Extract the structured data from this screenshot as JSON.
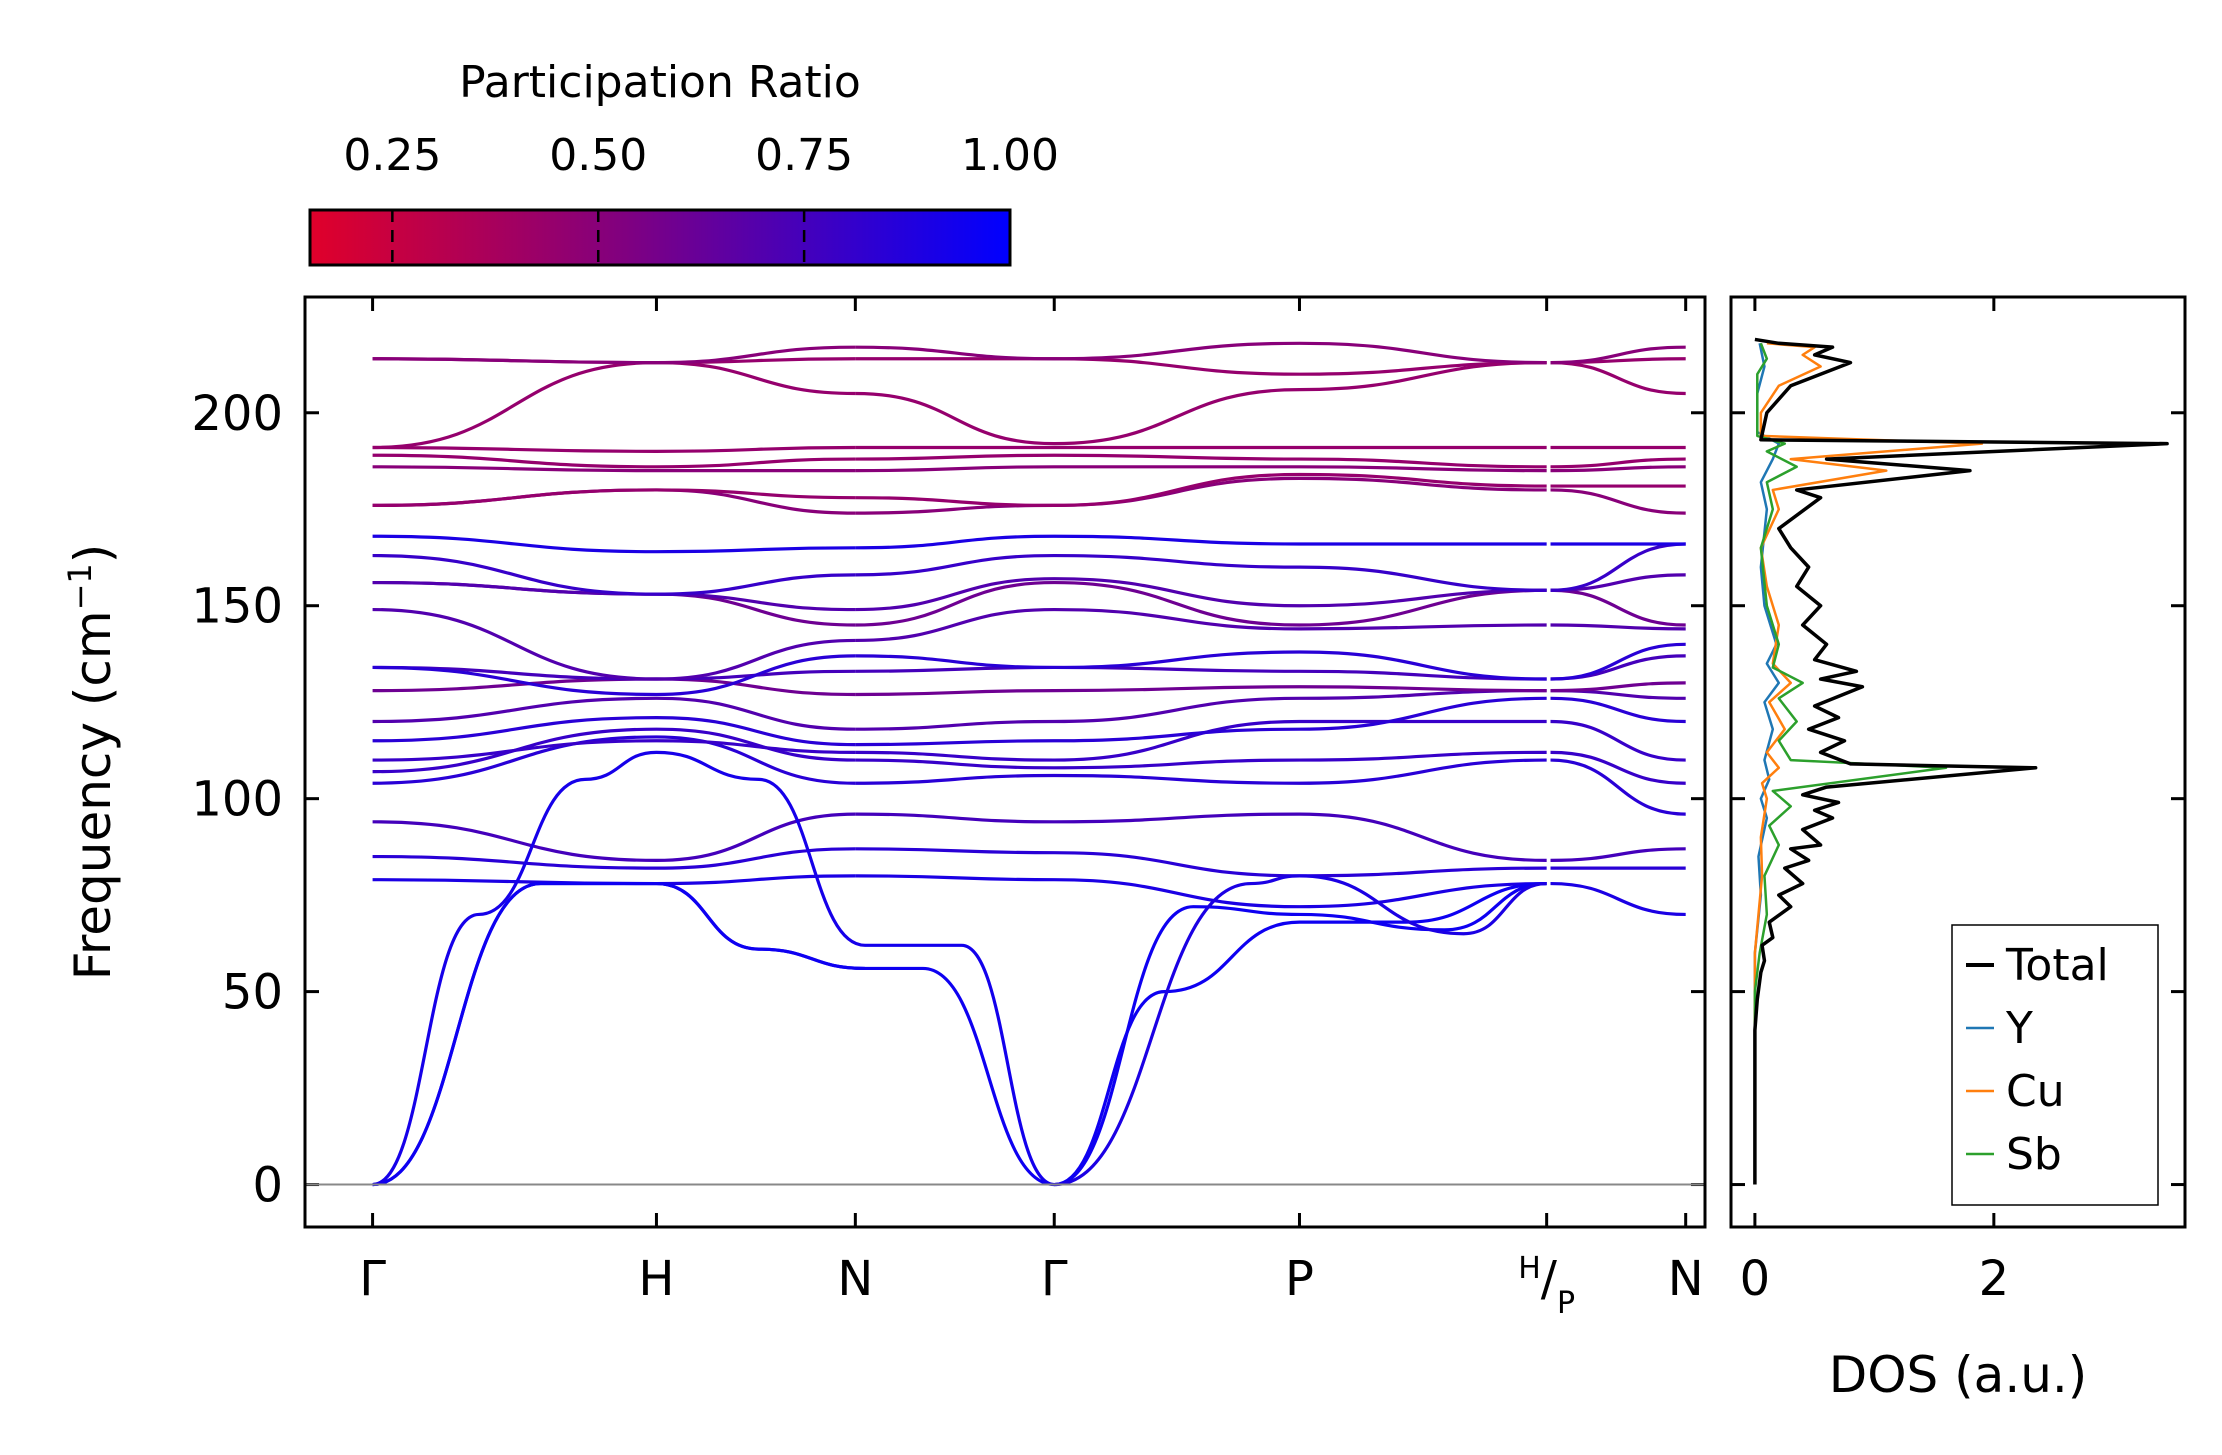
{
  "chart_data": [
    {
      "type": "line",
      "subtype": "phonon-band-structure",
      "title": "",
      "ylabel": "Frequency (cm⁻¹)",
      "ylabel_base": "Frequency (cm",
      "ylabel_sup": "−1",
      "ylabel_close": ")",
      "ylim": [
        -11,
        230
      ],
      "yticks": [
        0,
        50,
        100,
        150,
        200
      ],
      "xlim": [
        0,
        7.25
      ],
      "segments": [
        [
          0.35,
          2.9
        ],
        [
          2.9,
          5.45
        ]
      ],
      "kpoints": [
        {
          "label": "Γ",
          "x": 0.35
        },
        {
          "label": "H",
          "x": 1.82
        },
        {
          "label": "N",
          "x": 2.85
        },
        {
          "label": "Γ",
          "x": 3.88
        },
        {
          "label": "P",
          "x": 5.15
        },
        {
          "label": "H/P",
          "label_main": "H",
          "label_sep": "/",
          "label_sub": "P",
          "x": 6.43
        },
        {
          "label": "N",
          "x": 7.15
        }
      ],
      "zero_line": 0,
      "colorbar": {
        "label": "Participation Ratio",
        "ticks": [
          "0.25",
          "0.50",
          "0.75",
          "1.00"
        ],
        "tick_values": [
          0.25,
          0.5,
          0.75,
          1.0
        ],
        "range": [
          0.15,
          1.0
        ],
        "color_low": "#e0002a",
        "color_mid": "#800080",
        "color_high": "#0000ff"
      },
      "acoustic_branches": [
        {
          "path": [
            [
              0.35,
              0
            ],
            [
              1.22,
              78
            ],
            [
              1.82,
              78
            ],
            [
              2.35,
              61
            ],
            [
              2.9,
              56
            ]
          ],
          "pr": 0.95
        },
        {
          "path": [
            [
              0.35,
              0
            ],
            [
              1.22,
              78
            ],
            [
              1.82,
              78
            ],
            [
              2.35,
              61
            ],
            [
              2.9,
              56
            ]
          ],
          "pr": 0.95
        },
        {
          "path": [
            [
              0.35,
              0
            ],
            [
              0.9,
              70
            ],
            [
              1.45,
              105
            ],
            [
              1.82,
              112
            ],
            [
              2.35,
              105
            ],
            [
              2.9,
              62
            ]
          ],
          "pr": 0.92
        },
        {
          "path": [
            [
              3.88,
              0
            ],
            [
              3.2,
              56
            ],
            [
              2.9,
              56
            ]
          ],
          "pr": 0.95
        },
        {
          "path": [
            [
              3.88,
              0
            ],
            [
              3.4,
              62
            ],
            [
              2.9,
              62
            ]
          ],
          "pr": 0.93
        },
        {
          "path": [
            [
              3.88,
              0
            ],
            [
              4.45,
              50
            ],
            [
              5.15,
              68
            ],
            [
              5.7,
              68
            ],
            [
              6.43,
              78
            ]
          ],
          "pr": 0.95
        },
        {
          "path": [
            [
              3.88,
              0
            ],
            [
              4.6,
              72
            ],
            [
              5.15,
              70
            ],
            [
              5.9,
              66
            ],
            [
              6.43,
              78
            ]
          ],
          "pr": 0.95
        },
        {
          "path": [
            [
              3.88,
              0
            ],
            [
              4.9,
              78
            ],
            [
              5.15,
              80
            ],
            [
              6.0,
              65
            ],
            [
              6.43,
              78
            ]
          ],
          "pr": 0.9
        }
      ],
      "optical_branches": [
        {
          "at_gamma": 79,
          "at_H": 78,
          "at_N": 80,
          "at_gamma2": 79,
          "at_P": 72,
          "at_HP": 78,
          "at_N2": 70,
          "pr": 0.9
        },
        {
          "at_gamma": 85,
          "at_H": 82,
          "at_N": 87,
          "at_gamma2": 86,
          "at_P": 80,
          "at_HP": 82,
          "at_N2": 82,
          "pr": 0.85
        },
        {
          "at_gamma": 94,
          "at_H": 84,
          "at_N": 96,
          "at_gamma2": 94,
          "at_P": 96,
          "at_HP": 84,
          "at_N2": 87,
          "pr": 0.75
        },
        {
          "at_gamma": 104,
          "at_H": 116,
          "at_N": 104,
          "at_gamma2": 106,
          "at_P": 104,
          "at_HP": 110,
          "at_N2": 96,
          "pr": 0.85
        },
        {
          "at_gamma": 107,
          "at_H": 118,
          "at_N": 110,
          "at_gamma2": 108,
          "at_P": 110,
          "at_HP": 112,
          "at_N2": 104,
          "pr": 0.8
        },
        {
          "at_gamma": 110,
          "at_H": 115,
          "at_N": 112,
          "at_gamma2": 110,
          "at_P": 120,
          "at_HP": 120,
          "at_N2": 110,
          "pr": 0.8
        },
        {
          "at_gamma": 115,
          "at_H": 121,
          "at_N": 114,
          "at_gamma2": 115,
          "at_P": 118,
          "at_HP": 126,
          "at_N2": 120,
          "pr": 0.85
        },
        {
          "at_gamma": 120,
          "at_H": 126,
          "at_N": 118,
          "at_gamma2": 120,
          "at_P": 126,
          "at_HP": 128,
          "at_N2": 126,
          "pr": 0.7
        },
        {
          "at_gamma": 128,
          "at_H": 131,
          "at_N": 127,
          "at_gamma2": 128,
          "at_P": 129,
          "at_HP": 128,
          "at_N2": 130,
          "pr": 0.6
        },
        {
          "at_gamma": 134,
          "at_H": 131,
          "at_N": 133,
          "at_gamma2": 134,
          "at_P": 133,
          "at_HP": 131,
          "at_N2": 137,
          "pr": 0.75
        },
        {
          "at_gamma": 134,
          "at_H": 127,
          "at_N": 137,
          "at_gamma2": 134,
          "at_P": 138,
          "at_HP": 131,
          "at_N2": 140,
          "pr": 0.85
        },
        {
          "at_gamma": 149,
          "at_H": 131,
          "at_N": 141,
          "at_gamma2": 149,
          "at_P": 144,
          "at_HP": 145,
          "at_N2": 144,
          "pr": 0.7
        },
        {
          "at_gamma": 156,
          "at_H": 153,
          "at_N": 145,
          "at_gamma2": 156,
          "at_P": 145,
          "at_HP": 154,
          "at_N2": 145,
          "pr": 0.6
        },
        {
          "at_gamma": 156,
          "at_H": 153,
          "at_N": 149,
          "at_gamma2": 157,
          "at_P": 150,
          "at_HP": 154,
          "at_N2": 158,
          "pr": 0.7
        },
        {
          "at_gamma": 163,
          "at_H": 153,
          "at_N": 158,
          "at_gamma2": 163,
          "at_P": 160,
          "at_HP": 154,
          "at_N2": 166,
          "pr": 0.8
        },
        {
          "at_gamma": 168,
          "at_H": 164,
          "at_N": 165,
          "at_gamma2": 168,
          "at_P": 166,
          "at_HP": 166,
          "at_N2": 166,
          "pr": 0.9
        },
        {
          "at_gamma": 176,
          "at_H": 180,
          "at_N": 174,
          "at_gamma2": 176,
          "at_P": 183,
          "at_HP": 180,
          "at_N2": 174,
          "pr": 0.5
        },
        {
          "at_gamma": 176,
          "at_H": 180,
          "at_N": 178,
          "at_gamma2": 176,
          "at_P": 184,
          "at_HP": 181,
          "at_N2": 181,
          "pr": 0.45
        },
        {
          "at_gamma": 186,
          "at_H": 185,
          "at_N": 185,
          "at_gamma2": 186,
          "at_P": 186,
          "at_HP": 185,
          "at_N2": 186,
          "pr": 0.5
        },
        {
          "at_gamma": 189,
          "at_H": 186,
          "at_N": 188,
          "at_gamma2": 189,
          "at_P": 188,
          "at_HP": 186,
          "at_N2": 188,
          "pr": 0.45
        },
        {
          "at_gamma": 191,
          "at_H": 190,
          "at_N": 191,
          "at_gamma2": 191,
          "at_P": 191,
          "at_HP": 191,
          "at_N2": 191,
          "pr": 0.45
        },
        {
          "at_gamma": 191,
          "at_H": 213,
          "at_N": 205,
          "at_gamma2": 192,
          "at_P": 206,
          "at_HP": 213,
          "at_N2": 205,
          "pr": 0.45
        },
        {
          "at_gamma": 214,
          "at_H": 213,
          "at_N": 214,
          "at_gamma2": 214,
          "at_P": 210,
          "at_HP": 213,
          "at_N2": 214,
          "pr": 0.45
        },
        {
          "at_gamma": 214,
          "at_H": 213,
          "at_N": 217,
          "at_gamma2": 214,
          "at_P": 218,
          "at_HP": 213,
          "at_N2": 217,
          "pr": 0.5
        }
      ]
    },
    {
      "type": "line",
      "subtype": "density-of-states",
      "xlabel": "DOS (a.u.)",
      "xlim": [
        -0.2,
        3.6
      ],
      "xticks": [
        "0",
        "2"
      ],
      "xtick_values": [
        0,
        2
      ],
      "ylim": [
        -11,
        230
      ],
      "legend_position": "bottom-right",
      "series": [
        {
          "name": "Total",
          "color": "#000000",
          "points": [
            [
              0.0,
              0
            ],
            [
              0.0,
              40
            ],
            [
              0.02,
              48
            ],
            [
              0.05,
              55
            ],
            [
              0.08,
              58
            ],
            [
              0.06,
              62
            ],
            [
              0.15,
              64
            ],
            [
              0.12,
              68
            ],
            [
              0.3,
              72
            ],
            [
              0.2,
              75
            ],
            [
              0.4,
              78
            ],
            [
              0.25,
              82
            ],
            [
              0.45,
              84
            ],
            [
              0.3,
              87
            ],
            [
              0.55,
              88
            ],
            [
              0.4,
              92
            ],
            [
              0.65,
              95
            ],
            [
              0.5,
              97
            ],
            [
              0.7,
              99
            ],
            [
              0.4,
              101
            ],
            [
              0.6,
              103
            ],
            [
              2.35,
              108
            ],
            [
              0.8,
              109
            ],
            [
              0.55,
              112
            ],
            [
              0.75,
              115
            ],
            [
              0.45,
              118
            ],
            [
              0.7,
              121
            ],
            [
              0.5,
              124
            ],
            [
              0.9,
              129
            ],
            [
              0.55,
              131
            ],
            [
              0.85,
              133
            ],
            [
              0.5,
              136
            ],
            [
              0.6,
              140
            ],
            [
              0.4,
              145
            ],
            [
              0.55,
              150
            ],
            [
              0.35,
              155
            ],
            [
              0.45,
              160
            ],
            [
              0.3,
              165
            ],
            [
              0.2,
              170
            ],
            [
              0.55,
              178
            ],
            [
              0.35,
              180
            ],
            [
              1.8,
              185
            ],
            [
              0.6,
              188
            ],
            [
              3.45,
              192
            ],
            [
              0.05,
              193
            ],
            [
              0.1,
              200
            ],
            [
              0.3,
              207
            ],
            [
              0.8,
              213
            ],
            [
              0.5,
              215
            ],
            [
              0.65,
              217
            ],
            [
              0.2,
              218
            ],
            [
              0.0,
              219
            ]
          ]
        },
        {
          "name": "Y",
          "color": "#1f77b4",
          "points": [
            [
              0.0,
              0
            ],
            [
              0.0,
              60
            ],
            [
              0.05,
              75
            ],
            [
              0.03,
              85
            ],
            [
              0.1,
              95
            ],
            [
              0.05,
              100
            ],
            [
              0.12,
              105
            ],
            [
              0.08,
              110
            ],
            [
              0.15,
              118
            ],
            [
              0.08,
              125
            ],
            [
              0.2,
              130
            ],
            [
              0.1,
              135
            ],
            [
              0.18,
              140
            ],
            [
              0.08,
              150
            ],
            [
              0.05,
              160
            ],
            [
              0.1,
              175
            ],
            [
              0.05,
              182
            ],
            [
              0.15,
              188
            ],
            [
              0.2,
              192
            ],
            [
              0.02,
              195
            ],
            [
              0.02,
              205
            ],
            [
              0.08,
              212
            ],
            [
              0.04,
              218
            ]
          ]
        },
        {
          "name": "Cu",
          "color": "#ff7f0e",
          "points": [
            [
              0.0,
              0
            ],
            [
              0.0,
              60
            ],
            [
              0.03,
              70
            ],
            [
              0.06,
              80
            ],
            [
              0.05,
              90
            ],
            [
              0.1,
              100
            ],
            [
              0.06,
              104
            ],
            [
              0.2,
              108
            ],
            [
              0.1,
              112
            ],
            [
              0.25,
              118
            ],
            [
              0.12,
              125
            ],
            [
              0.3,
              130
            ],
            [
              0.15,
              135
            ],
            [
              0.2,
              145
            ],
            [
              0.1,
              155
            ],
            [
              0.05,
              165
            ],
            [
              0.2,
              175
            ],
            [
              0.15,
              180
            ],
            [
              1.1,
              185
            ],
            [
              0.3,
              188
            ],
            [
              1.9,
              192
            ],
            [
              0.05,
              194
            ],
            [
              0.05,
              200
            ],
            [
              0.2,
              207
            ],
            [
              0.55,
              212
            ],
            [
              0.4,
              215
            ],
            [
              0.5,
              217
            ],
            [
              0.1,
              218
            ]
          ]
        },
        {
          "name": "Sb",
          "color": "#2ca02c",
          "points": [
            [
              0.0,
              0
            ],
            [
              0.0,
              50
            ],
            [
              0.04,
              60
            ],
            [
              0.1,
              70
            ],
            [
              0.08,
              80
            ],
            [
              0.2,
              88
            ],
            [
              0.12,
              93
            ],
            [
              0.3,
              98
            ],
            [
              0.15,
              102
            ],
            [
              1.6,
              108
            ],
            [
              0.3,
              110
            ],
            [
              0.2,
              115
            ],
            [
              0.35,
              120
            ],
            [
              0.2,
              126
            ],
            [
              0.4,
              130
            ],
            [
              0.15,
              134
            ],
            [
              0.2,
              140
            ],
            [
              0.1,
              150
            ],
            [
              0.05,
              165
            ],
            [
              0.15,
              175
            ],
            [
              0.1,
              182
            ],
            [
              0.35,
              186
            ],
            [
              0.1,
              190
            ],
            [
              0.25,
              192
            ],
            [
              0.02,
              194
            ],
            [
              0.02,
              210
            ],
            [
              0.1,
              214
            ],
            [
              0.05,
              218
            ]
          ]
        }
      ]
    }
  ]
}
